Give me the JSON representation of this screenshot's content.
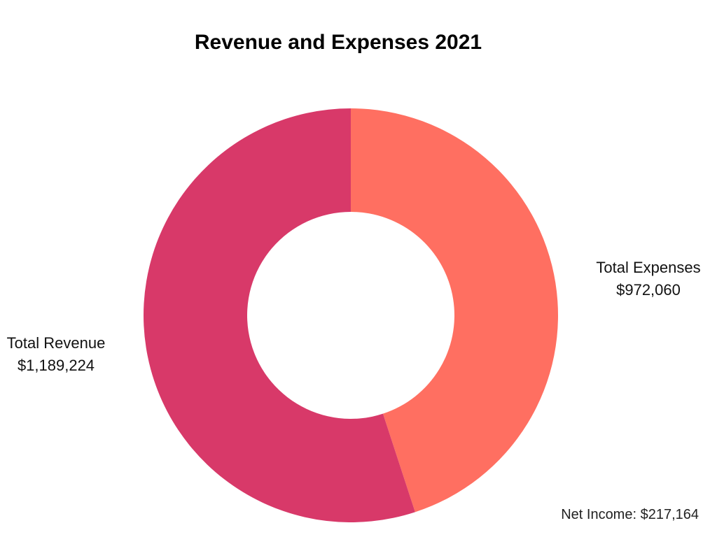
{
  "chart_data": {
    "type": "pie",
    "variant": "donut",
    "title": "Revenue and Expenses 2021",
    "slices": [
      {
        "label": "Total Expenses",
        "value": 972060,
        "value_text": "$972,060",
        "color": "#FF6F61"
      },
      {
        "label": "Total Revenue",
        "value": 1189224,
        "value_text": "$1,189,224",
        "color": "#D83969"
      }
    ],
    "annotation": "Net Income: $217,164"
  }
}
